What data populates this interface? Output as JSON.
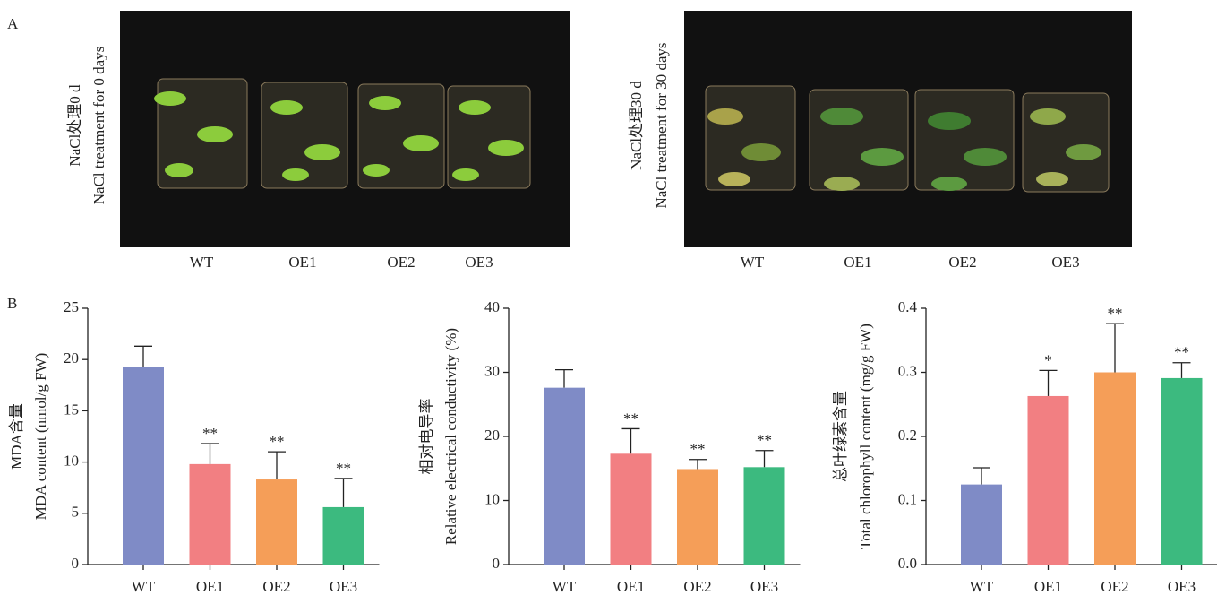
{
  "panel_labels": [
    "A",
    "B"
  ],
  "photos": [
    {
      "caption": [
        "NaCl处理0 d",
        "NaCl treatment for 0 days"
      ],
      "labels": [
        "WT",
        "OE1",
        "OE2",
        "OE3"
      ]
    },
    {
      "caption": [
        "NaCl处理30 d",
        "NaCl treatment for 30 days"
      ],
      "labels": [
        "WT",
        "OE1",
        "OE2",
        "OE3"
      ]
    }
  ],
  "chart_data": [
    {
      "type": "bar",
      "y_label": [
        "MDA含量",
        "MDA content (nmol/g FW)"
      ],
      "categories": [
        "WT",
        "OE1",
        "OE2",
        "OE3"
      ],
      "values": [
        19.3,
        9.8,
        8.3,
        5.6
      ],
      "errors": [
        2.0,
        2.0,
        2.7,
        2.8
      ],
      "annotations": [
        null,
        "**",
        "**",
        "**"
      ],
      "colors": [
        "#7f8bc6",
        "#f27f82",
        "#f59e58",
        "#3cba7f"
      ],
      "ylim": [
        0,
        25
      ],
      "yticks": [
        0,
        5,
        10,
        15,
        20,
        25
      ]
    },
    {
      "type": "bar",
      "y_label": [
        "相对电导率",
        "Relative electrical conductivity (%)"
      ],
      "categories": [
        "WT",
        "OE1",
        "OE2",
        "OE3"
      ],
      "values": [
        27.6,
        17.3,
        14.9,
        15.2
      ],
      "errors": [
        2.8,
        3.9,
        1.5,
        2.6
      ],
      "annotations": [
        null,
        "**",
        "**",
        "**"
      ],
      "colors": [
        "#7f8bc6",
        "#f27f82",
        "#f59e58",
        "#3cba7f"
      ],
      "ylim": [
        0,
        40
      ],
      "yticks": [
        0,
        10,
        20,
        30,
        40
      ]
    },
    {
      "type": "bar",
      "y_label": [
        "总叶绿素含量",
        "Total chlorophyll content  (mg/g FW)"
      ],
      "categories": [
        "WT",
        "OE1",
        "OE2",
        "OE3"
      ],
      "values": [
        0.125,
        0.263,
        0.3,
        0.291
      ],
      "errors": [
        0.026,
        0.04,
        0.076,
        0.024
      ],
      "annotations": [
        null,
        "*",
        "**",
        "**"
      ],
      "colors": [
        "#7f8bc6",
        "#f27f82",
        "#f59e58",
        "#3cba7f"
      ],
      "ylim": [
        0,
        0.4
      ],
      "yticks": [
        {
          "value": 0,
          "label": "0.0"
        },
        0.1,
        0.2,
        0.3,
        0.4
      ]
    }
  ]
}
